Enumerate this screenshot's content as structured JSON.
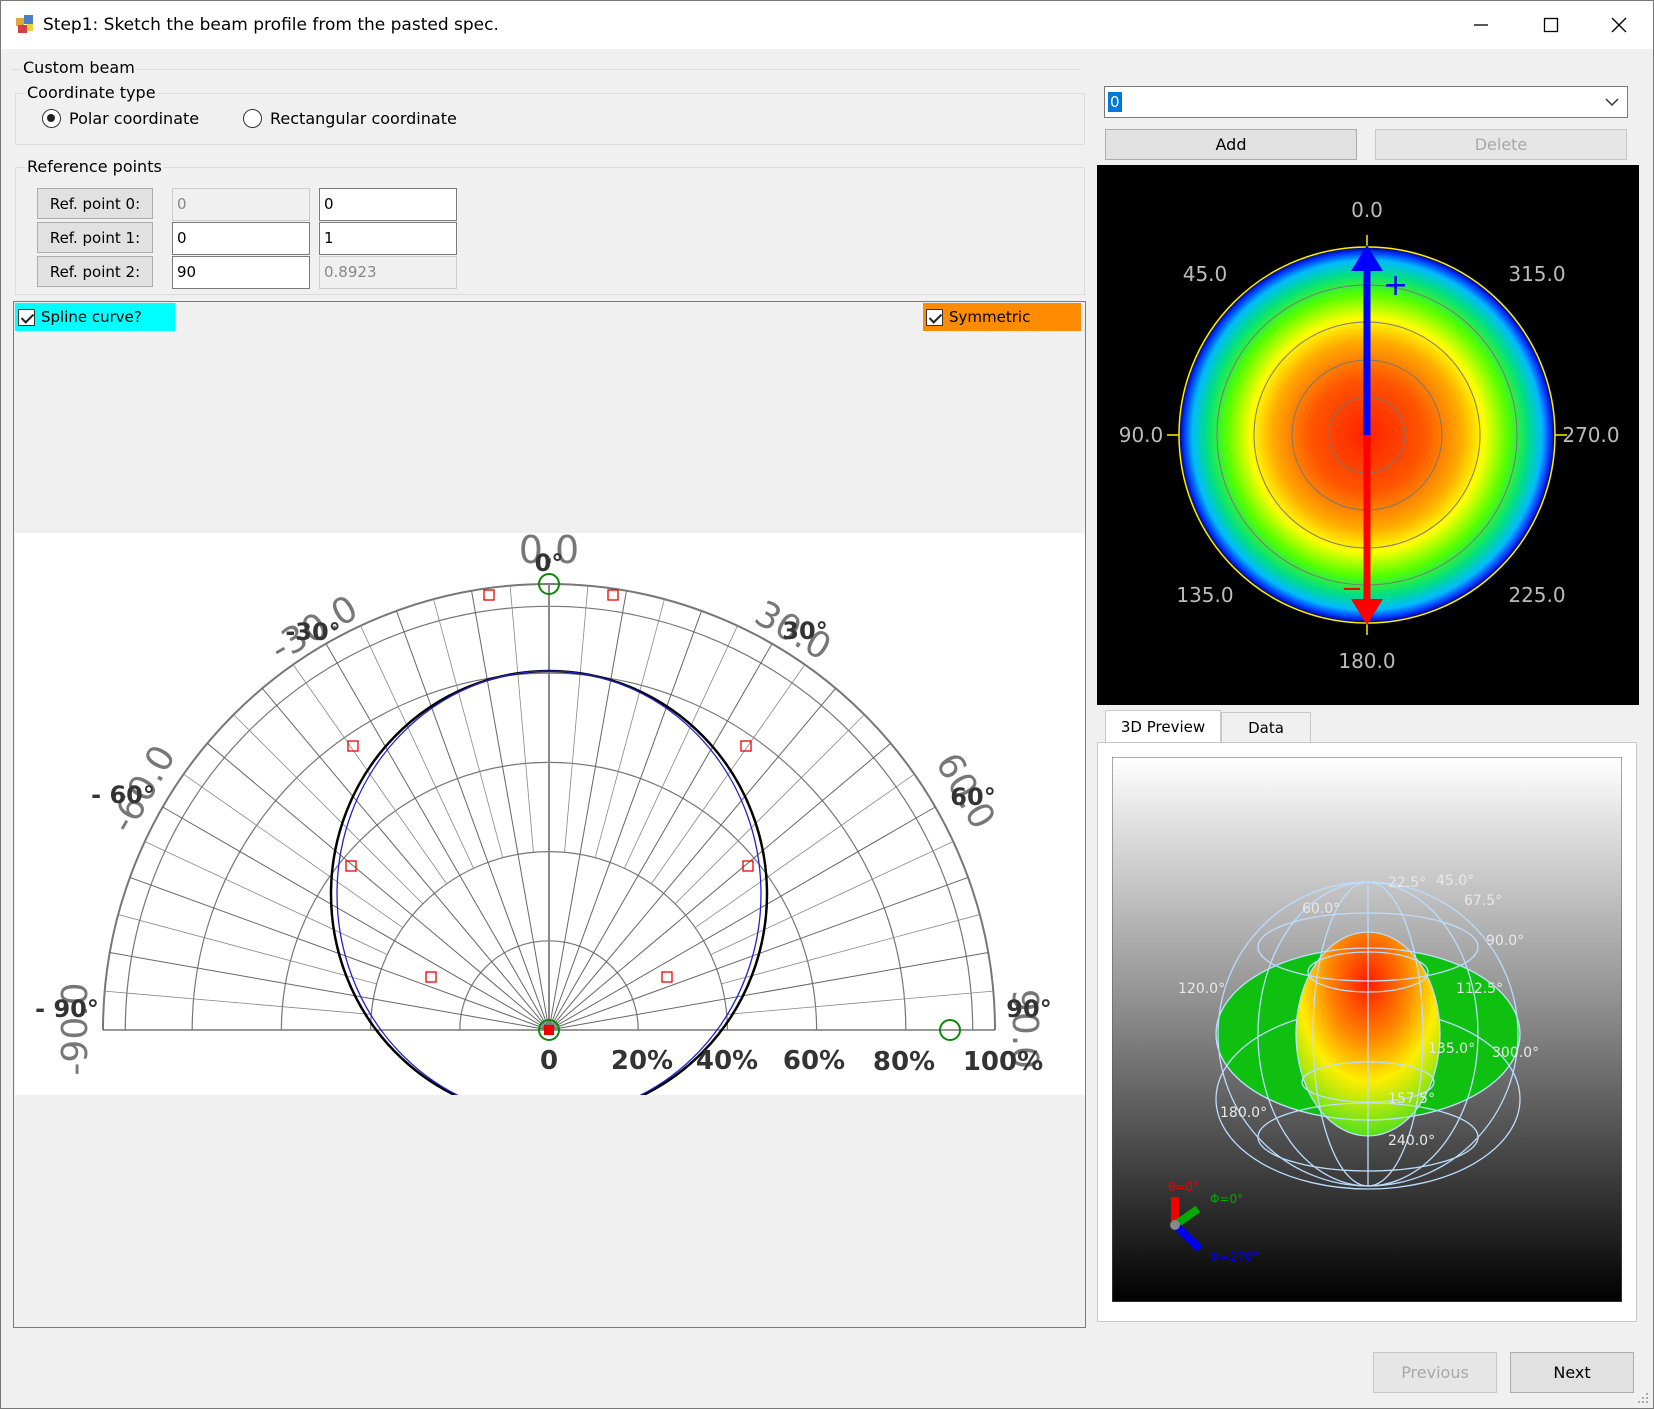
{
  "window": {
    "title": "Step1: Sketch the beam profile from the pasted spec."
  },
  "custom_beam": {
    "label": "Custom beam"
  },
  "coordinate_type": {
    "label": "Coordinate type",
    "polar_label": "Polar coordinate",
    "rect_label": "Rectangular coordinate",
    "selected": "polar"
  },
  "reference_points": {
    "label": "Reference points",
    "rows": [
      {
        "label": "Ref. point 0:",
        "a": "0",
        "b": "0"
      },
      {
        "label": "Ref. point 1:",
        "a": "0",
        "b": "1"
      },
      {
        "label": "Ref. point 2:",
        "a": "90",
        "b": "0.8923"
      }
    ]
  },
  "options": {
    "spline_label": "Spline curve?",
    "symmetric_label": "Symmetric",
    "spline_color": "#00ffff",
    "symmetric_color": "#ff8c00"
  },
  "polar_chart": {
    "angle_labels_upright": [
      "0°",
      "-30°",
      "30°",
      "- 60°",
      "60°",
      "- 90°",
      "90°"
    ],
    "angle_labels_rotated": [
      "0.0",
      "-30.0",
      "30.0",
      "-60.0",
      "60.0",
      "-90.0",
      "90.0"
    ],
    "radial_labels": [
      "0",
      "20%",
      "40%",
      "60%",
      "80%",
      "100%"
    ]
  },
  "preset_combo": {
    "value": "0"
  },
  "actions": {
    "add_label": "Add",
    "delete_label": "Delete",
    "previous_label": "Previous",
    "next_label": "Next"
  },
  "heatmap": {
    "labels": [
      "0.0",
      "45.0",
      "315.0",
      "90.0",
      "270.0",
      "135.0",
      "225.0",
      "180.0"
    ]
  },
  "tabs": [
    {
      "label": "3D Preview",
      "active": true
    },
    {
      "label": "Data",
      "active": false
    }
  ],
  "preview3d": {
    "labels": [
      "22.5°",
      "45.0°",
      "67.5°",
      "90.0°",
      "60.0°",
      "120.0°",
      "112.5°",
      "135.0°",
      "300.0°",
      "180.0°",
      "157.5°",
      "240.0°"
    ],
    "axes": [
      "θ=0°",
      "Φ=0°",
      "Φ=270°"
    ]
  }
}
